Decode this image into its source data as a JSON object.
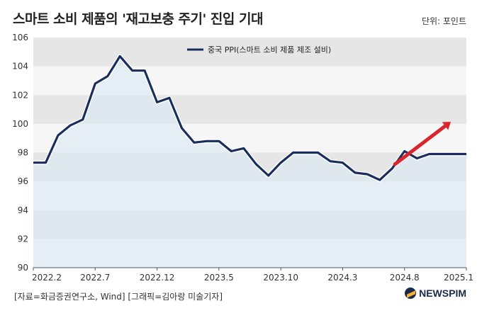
{
  "header": {
    "title": "스마트 소비 제품의 '재고보충 주기' 진입 기대",
    "unit": "단위: 포인트"
  },
  "footer": {
    "source": "[자료=화금증권연구소, Wind] [그래픽=김아랑 미술기자]",
    "logo": "NEWSPIM"
  },
  "colors": {
    "line": "#1a2e5e",
    "arrow": "#d9262c",
    "band_dark": "#e6e6e6",
    "band_light": "#f6f6f6",
    "area_fill": "#dbe9f3"
  },
  "chart_data": {
    "type": "line",
    "title": "스마트 소비 제품의 '재고보충 주기' 진입 기대",
    "xlabel": "",
    "ylabel": "",
    "ylim": [
      90,
      106
    ],
    "yticks": [
      90,
      92,
      94,
      96,
      98,
      100,
      102,
      104,
      106
    ],
    "xticks": [
      "2022.2",
      "2022.7",
      "2022.12",
      "2023.5",
      "2023.10",
      "2024.3",
      "2024.8",
      "2025.1"
    ],
    "grid": true,
    "legend_position": "top-center",
    "series": [
      {
        "name": "중국 PPI(스마트 소비 제품 제조 설비)",
        "x": [
          "2022.2",
          "2022.3",
          "2022.4",
          "2022.5",
          "2022.6",
          "2022.7",
          "2022.8",
          "2022.9",
          "2022.10",
          "2022.11",
          "2022.12",
          "2023.1",
          "2023.2",
          "2023.3",
          "2023.4",
          "2023.5",
          "2023.6",
          "2023.7",
          "2023.8",
          "2023.9",
          "2023.10",
          "2023.11",
          "2023.12",
          "2024.1",
          "2024.2",
          "2024.3",
          "2024.4",
          "2024.5",
          "2024.6",
          "2024.7",
          "2024.8",
          "2024.9",
          "2024.10",
          "2024.11",
          "2024.12",
          "2025.1"
        ],
        "values": [
          97.3,
          97.3,
          99.2,
          99.9,
          100.3,
          102.8,
          103.3,
          104.7,
          103.7,
          103.7,
          101.5,
          101.8,
          99.7,
          98.7,
          98.8,
          98.8,
          98.1,
          98.3,
          97.2,
          96.4,
          97.3,
          98.0,
          98.0,
          98.0,
          97.4,
          97.3,
          96.6,
          96.5,
          96.1,
          96.9,
          98.1,
          97.6,
          97.9,
          97.9,
          97.9,
          97.9
        ]
      }
    ]
  }
}
